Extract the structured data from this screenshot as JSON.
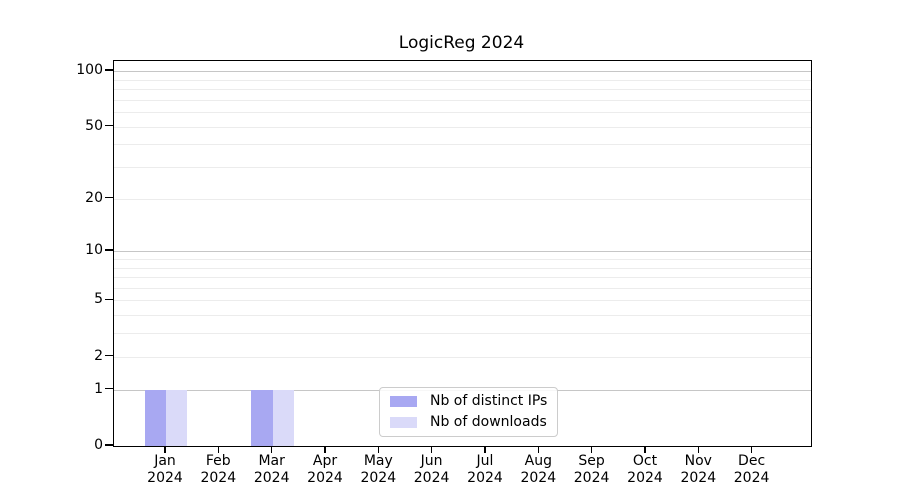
{
  "chart_data": {
    "type": "bar",
    "title": "LogicReg 2024",
    "categories": [
      "Jan 2024",
      "Feb 2024",
      "Mar 2024",
      "Apr 2024",
      "May 2024",
      "Jun 2024",
      "Jul 2024",
      "Aug 2024",
      "Sep 2024",
      "Oct 2024",
      "Nov 2024",
      "Dec 2024"
    ],
    "x_tick_months": [
      "Jan",
      "Feb",
      "Mar",
      "Apr",
      "May",
      "Jun",
      "Jul",
      "Aug",
      "Sep",
      "Oct",
      "Nov",
      "Dec"
    ],
    "x_tick_year": "2024",
    "series": [
      {
        "key": "distinct-ips",
        "name": "Nb of distinct IPs",
        "color": "#a8a8f2",
        "values": [
          1,
          0,
          1,
          0,
          0,
          0,
          0,
          0,
          0,
          0,
          0,
          0
        ]
      },
      {
        "key": "downloads",
        "name": "Nb of downloads",
        "color": "#dadaf9",
        "values": [
          1,
          0,
          1,
          0,
          0,
          0,
          0,
          0,
          0,
          0,
          0,
          0
        ]
      }
    ],
    "y_axis": {
      "scale": "log1p",
      "ticks": [
        0,
        1,
        2,
        5,
        10,
        20,
        50,
        100
      ],
      "minor_gridlines": [
        3,
        4,
        6,
        7,
        8,
        9,
        30,
        40,
        60,
        70,
        80,
        90
      ],
      "emphasized_gridlines": [
        1,
        10,
        100
      ],
      "ylim": [
        0,
        113
      ]
    },
    "legend": {
      "position": "lower center"
    },
    "grid": true,
    "colors": {
      "grid_minor": "#ececec",
      "grid_major": "#c6c6c6",
      "spine": "#000000",
      "background": "#ffffff"
    }
  }
}
